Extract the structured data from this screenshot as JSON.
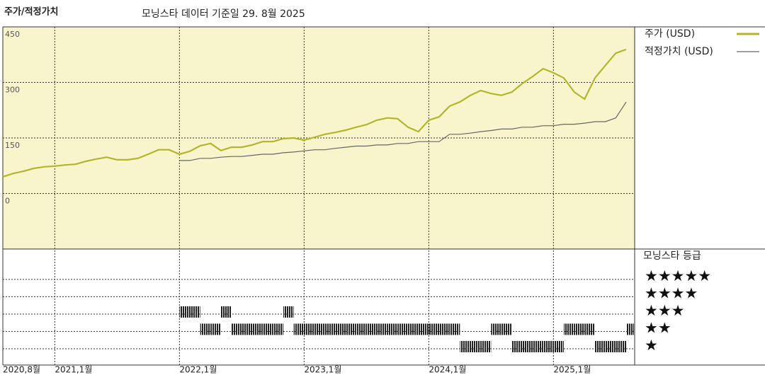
{
  "chart_data": {
    "type": "line",
    "title": "주가/적정가치",
    "subtitle": "모닝스타 데이터 기준일 29. 8월 2025",
    "x": [
      "2020-08",
      "2020-09",
      "2020-10",
      "2020-11",
      "2020-12",
      "2021-01",
      "2021-02",
      "2021-03",
      "2021-04",
      "2021-05",
      "2021-06",
      "2021-07",
      "2021-08",
      "2021-09",
      "2021-10",
      "2021-11",
      "2021-12",
      "2022-01",
      "2022-02",
      "2022-03",
      "2022-04",
      "2022-05",
      "2022-06",
      "2022-07",
      "2022-08",
      "2022-09",
      "2022-10",
      "2022-11",
      "2022-12",
      "2023-01",
      "2023-02",
      "2023-03",
      "2023-04",
      "2023-05",
      "2023-06",
      "2023-07",
      "2023-08",
      "2023-09",
      "2023-10",
      "2023-11",
      "2023-12",
      "2024-01",
      "2024-02",
      "2024-03",
      "2024-04",
      "2024-05",
      "2024-06",
      "2024-07",
      "2024-08",
      "2024-09",
      "2024-10",
      "2024-11",
      "2024-12",
      "2025-01",
      "2025-02",
      "2025-03",
      "2025-04",
      "2025-05",
      "2025-06",
      "2025-07",
      "2025-08"
    ],
    "series": [
      {
        "name": "주가 (USD)",
        "color": "#b3b52a",
        "values": [
          45,
          54,
          60,
          68,
          72,
          74,
          77,
          79,
          87,
          93,
          98,
          91,
          91,
          95,
          106,
          118,
          118,
          106,
          114,
          129,
          135,
          116,
          125,
          125,
          131,
          140,
          140,
          148,
          150,
          144,
          152,
          160,
          165,
          171,
          179,
          186,
          198,
          204,
          202,
          179,
          167,
          198,
          207,
          236,
          247,
          265,
          278,
          270,
          265,
          274,
          297,
          316,
          337,
          326,
          312,
          274,
          255,
          312,
          346,
          379,
          389
        ]
      },
      {
        "name": "적정가치 (USD)",
        "color": "#666666",
        "values": [
          null,
          null,
          null,
          null,
          null,
          null,
          null,
          null,
          null,
          null,
          null,
          null,
          null,
          null,
          null,
          null,
          null,
          89,
          89,
          95,
          95,
          98,
          100,
          100,
          103,
          106,
          106,
          110,
          112,
          115,
          118,
          118,
          122,
          125,
          128,
          128,
          131,
          131,
          135,
          135,
          140,
          140,
          140,
          160,
          160,
          163,
          167,
          170,
          174,
          174,
          179,
          179,
          183,
          183,
          187,
          187,
          190,
          194,
          194,
          204,
          247
        ]
      }
    ],
    "xlim": [
      "2020-08",
      "2025-08"
    ],
    "xticks": [
      {
        "value": "2020-08",
        "label": "2020,8월"
      },
      {
        "value": "2021-01",
        "label": "2021,1월"
      },
      {
        "value": "2022-01",
        "label": "2022,1월"
      },
      {
        "value": "2023-01",
        "label": "2023,1월"
      },
      {
        "value": "2024-01",
        "label": "2024,1월"
      },
      {
        "value": "2025-01",
        "label": "2025,1월"
      }
    ],
    "ylim": [
      -150,
      450
    ],
    "yticks": [
      0,
      150,
      300,
      450
    ],
    "grid": true,
    "background": "#f8f5cc",
    "rating_title": "모닝스타 등급",
    "rating_levels": [
      {
        "value": 5,
        "label": "★★★★★"
      },
      {
        "value": 4,
        "label": "★★★★"
      },
      {
        "value": 3,
        "label": "★★★"
      },
      {
        "value": 2,
        "label": "★★"
      },
      {
        "value": 1,
        "label": "★"
      }
    ],
    "ratings": [
      null,
      null,
      null,
      null,
      null,
      null,
      null,
      null,
      null,
      null,
      null,
      null,
      null,
      null,
      null,
      null,
      null,
      3,
      3,
      2,
      2,
      3,
      2,
      2,
      2,
      2,
      2,
      3,
      2,
      2,
      2,
      2,
      2,
      2,
      2,
      2,
      2,
      2,
      2,
      2,
      2,
      2,
      2,
      2,
      1,
      1,
      1,
      2,
      2,
      1,
      1,
      1,
      1,
      1,
      2,
      2,
      2,
      1,
      1,
      1,
      2
    ]
  }
}
